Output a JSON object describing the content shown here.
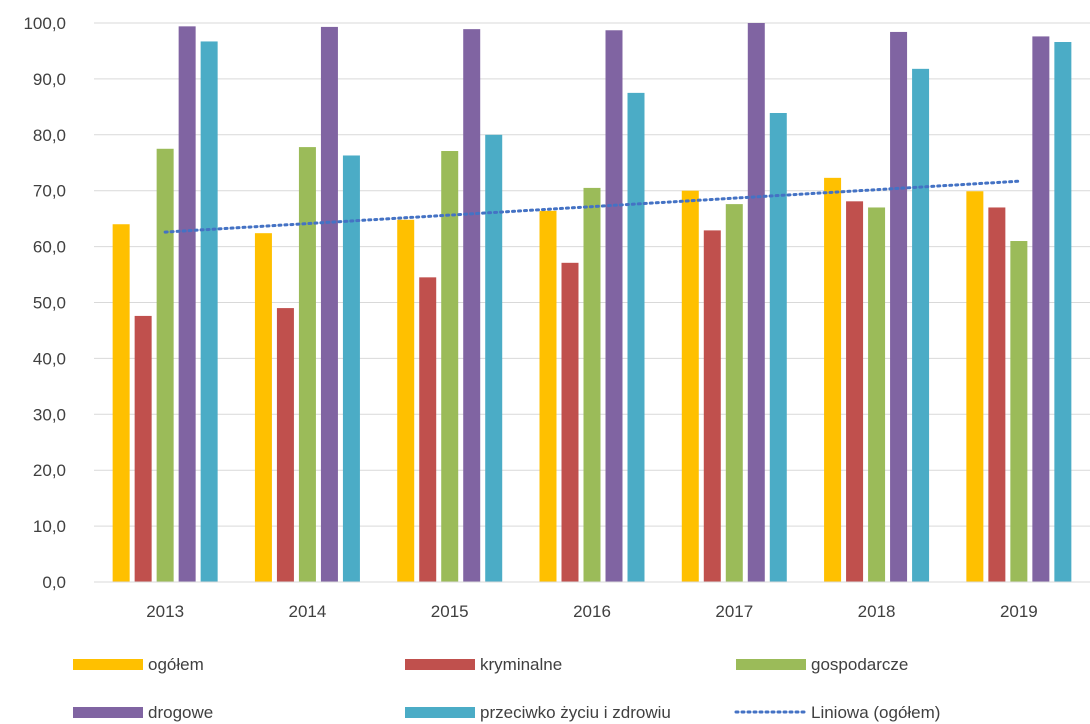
{
  "chart_data": {
    "type": "bar",
    "categories": [
      "2013",
      "2014",
      "2015",
      "2016",
      "2017",
      "2018",
      "2019"
    ],
    "ylim": [
      0,
      100
    ],
    "yticks": [
      "0,0",
      "10,0",
      "20,0",
      "30,0",
      "40,0",
      "50,0",
      "60,0",
      "70,0",
      "80,0",
      "90,0",
      "100,0"
    ],
    "grid": true,
    "legend_position": "bottom",
    "series": [
      {
        "name": "ogółem",
        "color": "#FFC000",
        "values": [
          64.0,
          62.4,
          64.8,
          66.4,
          70.0,
          72.3,
          69.9
        ]
      },
      {
        "name": "kryminalne",
        "color": "#C0504D",
        "values": [
          47.6,
          49.0,
          54.5,
          57.1,
          62.9,
          68.1,
          67.0
        ]
      },
      {
        "name": "gospodarcze",
        "color": "#9BBB59",
        "values": [
          77.5,
          77.8,
          77.1,
          70.5,
          67.6,
          67.0,
          61.0
        ]
      },
      {
        "name": "drogowe",
        "color": "#8064A2",
        "values": [
          99.4,
          99.3,
          98.9,
          98.7,
          100.0,
          98.4,
          97.6
        ]
      },
      {
        "name": "przeciwko życiu i zdrowiu",
        "color": "#4BACC6",
        "values": [
          96.7,
          76.3,
          80.0,
          87.5,
          83.9,
          91.8,
          96.6
        ]
      }
    ],
    "trendline": {
      "name": "Liniowa (ogółem)",
      "color": "#4472C4",
      "start": 62.6,
      "end": 71.7
    }
  }
}
